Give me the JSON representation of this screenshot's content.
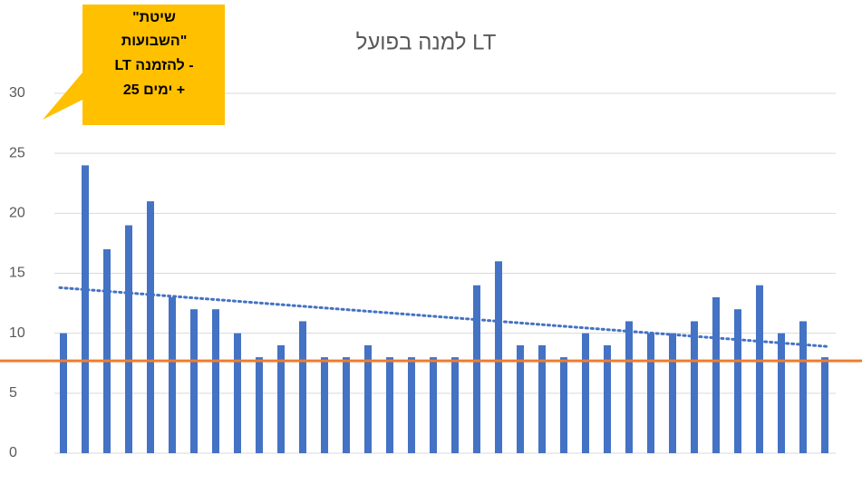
{
  "chart_data": {
    "type": "bar",
    "title": "LT למנה בפועל",
    "values": [
      10,
      24,
      17,
      19,
      21,
      13,
      12,
      12,
      10,
      8,
      9,
      11,
      8,
      8,
      9,
      8,
      8,
      8,
      8,
      14,
      16,
      9,
      9,
      8,
      10,
      9,
      11,
      10,
      10,
      11,
      13,
      12,
      14,
      10,
      11,
      8
    ],
    "color": "#4472c4",
    "ylim": [
      0,
      30
    ],
    "yticks": [
      0,
      5,
      10,
      15,
      20,
      25,
      30
    ],
    "grid": true,
    "reference_line": {
      "value": 7.7,
      "color": "#ed7d31"
    },
    "trendline": {
      "values": [
        13.8,
        8.9
      ],
      "color": "#4472c4"
    },
    "callout": {
      "lines": [
        "שיטת\"",
        "\"השבועות",
        "- להזמנה LT",
        "+ ימים 25"
      ],
      "color": "#ffc000"
    }
  }
}
